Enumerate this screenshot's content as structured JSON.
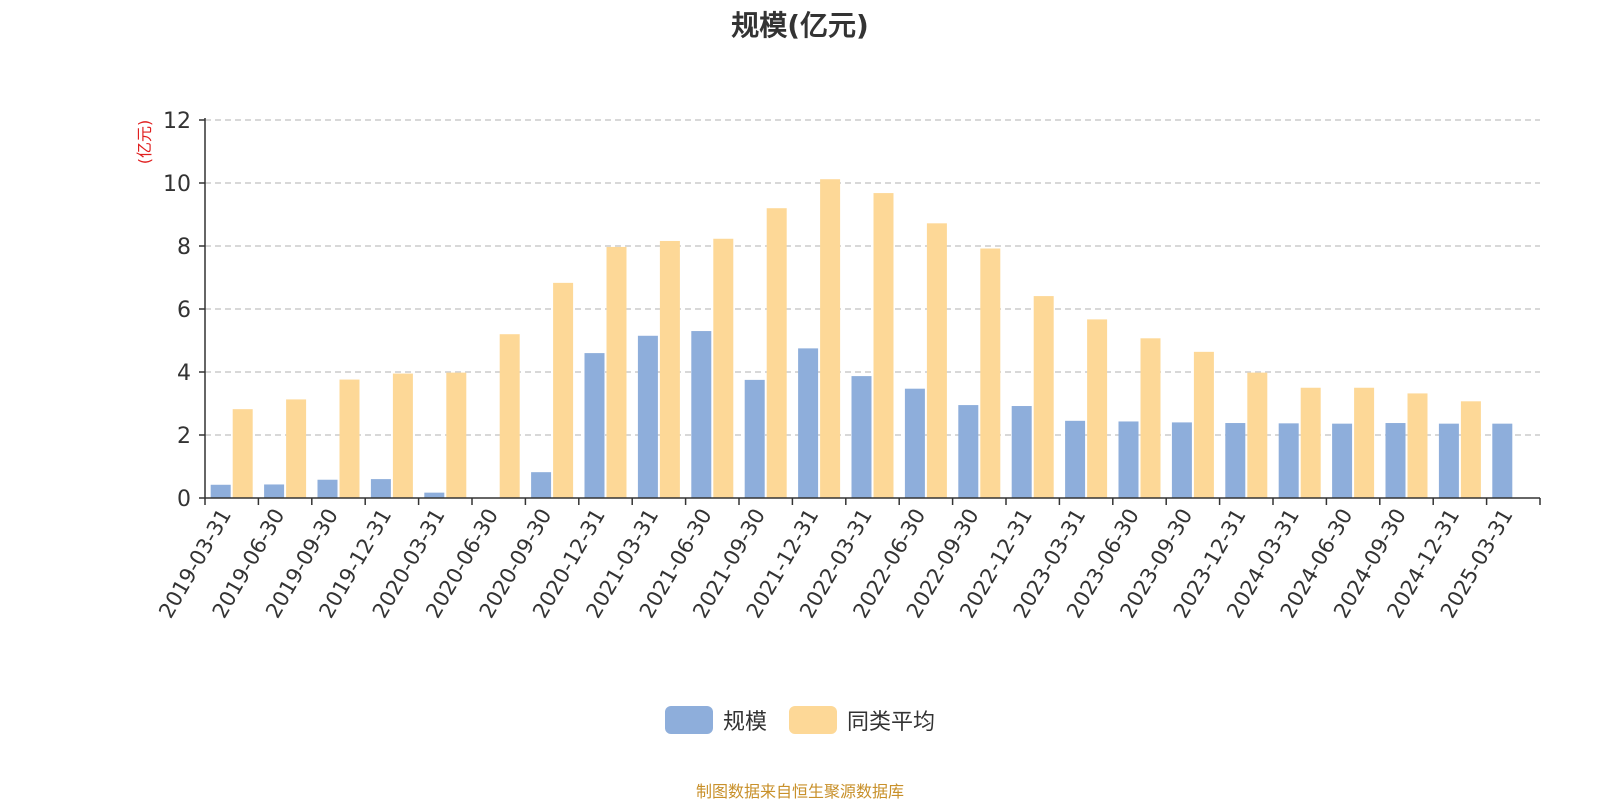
{
  "chart_data": {
    "type": "bar",
    "title": "规模(亿元)",
    "ylabel": "(亿元)",
    "xlabel": "",
    "ylim": [
      0,
      12
    ],
    "yticks": [
      0,
      2,
      4,
      6,
      8,
      10,
      12
    ],
    "grid": true,
    "legend_position": "bottom",
    "categories": [
      "2019-03-31",
      "2019-06-30",
      "2019-09-30",
      "2019-12-31",
      "2020-03-31",
      "2020-06-30",
      "2020-09-30",
      "2020-12-31",
      "2021-03-31",
      "2021-06-30",
      "2021-09-30",
      "2021-12-31",
      "2022-03-31",
      "2022-06-30",
      "2022-09-30",
      "2022-12-31",
      "2023-03-31",
      "2023-06-30",
      "2023-09-30",
      "2023-12-31",
      "2024-03-31",
      "2024-06-30",
      "2024-09-30",
      "2024-12-31",
      "2025-03-31"
    ],
    "series": [
      {
        "name": "规模",
        "color": "#8eaedb",
        "values": [
          0.42,
          0.43,
          0.58,
          0.6,
          0.17,
          0.0,
          0.82,
          4.6,
          5.15,
          5.3,
          3.75,
          4.75,
          3.87,
          3.47,
          2.95,
          2.92,
          2.45,
          2.43,
          2.4,
          2.38,
          2.37,
          2.36,
          2.38,
          2.36,
          2.36
        ]
      },
      {
        "name": "同类平均",
        "color": "#fdd897",
        "values": [
          2.82,
          3.13,
          3.76,
          3.95,
          3.98,
          5.2,
          6.83,
          7.97,
          8.16,
          8.23,
          9.2,
          10.12,
          9.68,
          8.72,
          7.92,
          6.41,
          5.67,
          5.07,
          4.64,
          3.98,
          3.5,
          3.5,
          3.32,
          3.07,
          null
        ]
      }
    ]
  },
  "source_text": "制图数据来自恒生聚源数据库"
}
